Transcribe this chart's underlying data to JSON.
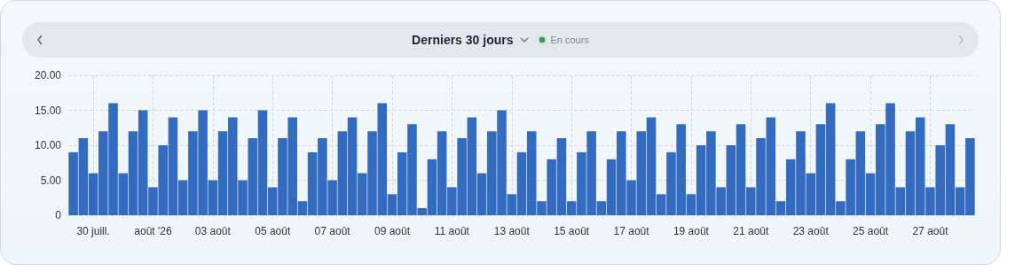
{
  "chart_data": {
    "type": "bar",
    "title": "Derniers 30 jours",
    "annotations": [
      "En cours"
    ],
    "categories": [
      null,
      null,
      "30 juill.",
      null,
      null,
      null,
      null,
      null,
      "août '26",
      null,
      null,
      null,
      null,
      null,
      "03 août",
      null,
      null,
      null,
      null,
      null,
      "05 août",
      null,
      null,
      null,
      null,
      null,
      "07 août",
      null,
      null,
      null,
      null,
      null,
      "09 août",
      null,
      null,
      null,
      null,
      null,
      "11 août",
      null,
      null,
      null,
      null,
      null,
      "13 août",
      null,
      null,
      null,
      null,
      null,
      "15 août",
      null,
      null,
      null,
      null,
      null,
      "17 août",
      null,
      null,
      null,
      null,
      null,
      "19 août",
      null,
      null,
      null,
      null,
      null,
      "21 août",
      null,
      null,
      null,
      null,
      null,
      "23 août",
      null,
      null,
      null,
      null,
      null,
      "25 août",
      null,
      null,
      null,
      null,
      null,
      "27 août",
      null,
      null,
      null,
      null
    ],
    "values": [
      9,
      11,
      6,
      12,
      16,
      6,
      12,
      15,
      4,
      10,
      14,
      5,
      12,
      15,
      5,
      12,
      14,
      5,
      11,
      15,
      4,
      11,
      14,
      2,
      9,
      11,
      5,
      12,
      14,
      6,
      12,
      16,
      3,
      9,
      13,
      1,
      8,
      12,
      4,
      11,
      14,
      6,
      12,
      15,
      3,
      9,
      12,
      2,
      8,
      11,
      2,
      9,
      12,
      2,
      8,
      12,
      5,
      12,
      14,
      3,
      9,
      13,
      3,
      10,
      12,
      4,
      10,
      13,
      4,
      11,
      14,
      2,
      8,
      12,
      6,
      13,
      16,
      2,
      8,
      12,
      6,
      13,
      16,
      4,
      12,
      14,
      4,
      10,
      13,
      4,
      11
    ],
    "color": "#336bc0",
    "ylim": [
      0,
      20
    ],
    "yticks": [
      0,
      {
        "value": 5,
        "label": "5.00"
      },
      {
        "value": 10,
        "label": "10.00"
      },
      {
        "value": 15,
        "label": "15.00"
      },
      {
        "value": 20,
        "label": "20.00"
      }
    ],
    "grid": true
  }
}
